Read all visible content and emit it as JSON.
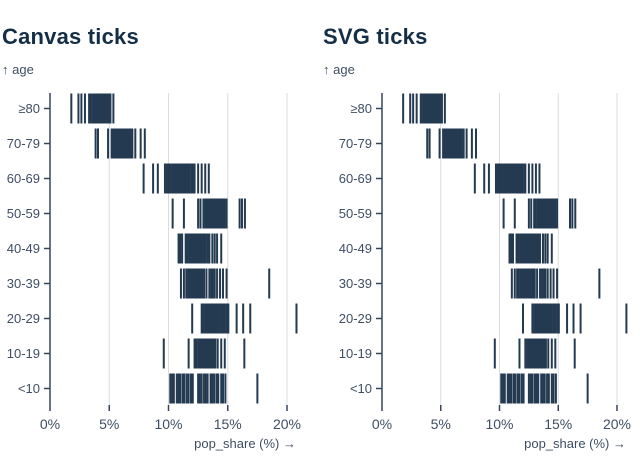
{
  "colors": {
    "tick": "#243a50",
    "axis": "#33465c",
    "grid": "#d8dce2",
    "label": "#3e4e63",
    "title": "#152e47",
    "background": "#ffffff"
  },
  "chart_data": [
    {
      "type": "scatter",
      "mark": "tick",
      "title": "Canvas ticks",
      "ylabel": "↑ age",
      "xlabel": "pop_share (%) →",
      "xlim": [
        0,
        20
      ],
      "grid": true,
      "xticks": {
        "labels": [
          "0%",
          "5%",
          "10%",
          "15%",
          "20%"
        ],
        "values": [
          0,
          5,
          10,
          15,
          20
        ]
      },
      "categories": [
        "≥80",
        "70-79",
        "60-69",
        "50-59",
        "40-49",
        "30-39",
        "20-29",
        "10-19",
        "<10"
      ],
      "series": [
        {
          "name": "≥80",
          "values": [
            1.8,
            2.4,
            2.65,
            2.95,
            3.3,
            3.45,
            3.6,
            3.7,
            3.8,
            3.85,
            3.95,
            4.0,
            4.05,
            4.15,
            4.2,
            4.25,
            4.35,
            4.4,
            4.5,
            4.55,
            4.65,
            4.7,
            4.8,
            4.9,
            5.0,
            5.1,
            5.35
          ]
        },
        {
          "name": "70-79",
          "values": [
            3.85,
            4.05,
            4.9,
            5.2,
            5.35,
            5.45,
            5.55,
            5.6,
            5.7,
            5.75,
            5.85,
            5.9,
            6.0,
            6.05,
            6.15,
            6.2,
            6.3,
            6.4,
            6.5,
            6.6,
            6.7,
            6.8,
            6.95,
            7.2,
            7.65,
            8.0
          ]
        },
        {
          "name": "60-69",
          "values": [
            7.9,
            8.7,
            9.1,
            9.7,
            9.85,
            10.0,
            10.15,
            10.3,
            10.4,
            10.5,
            10.6,
            10.7,
            10.8,
            10.9,
            11.0,
            11.1,
            11.2,
            11.3,
            11.4,
            11.5,
            11.6,
            11.7,
            11.8,
            11.95,
            12.1,
            12.2,
            12.5,
            12.8,
            13.1,
            13.4
          ]
        },
        {
          "name": "50-59",
          "values": [
            10.35,
            11.3,
            12.5,
            12.7,
            12.95,
            13.1,
            13.25,
            13.35,
            13.45,
            13.55,
            13.65,
            13.75,
            13.85,
            13.95,
            14.05,
            14.15,
            14.25,
            14.35,
            14.45,
            14.55,
            14.65,
            14.75,
            14.9,
            16.0,
            16.2,
            16.45
          ]
        },
        {
          "name": "40-49",
          "values": [
            10.85,
            11.0,
            11.15,
            11.45,
            11.6,
            11.75,
            11.85,
            11.95,
            12.05,
            12.15,
            12.25,
            12.35,
            12.45,
            12.55,
            12.65,
            12.75,
            12.85,
            12.95,
            13.05,
            13.15,
            13.3,
            13.45,
            13.7,
            13.9,
            14.1,
            14.45
          ]
        },
        {
          "name": "30-39",
          "values": [
            11.05,
            11.3,
            11.5,
            11.65,
            11.8,
            11.9,
            12.0,
            12.1,
            12.2,
            12.3,
            12.4,
            12.5,
            12.6,
            12.7,
            12.85,
            13.0,
            13.2,
            13.45,
            13.6,
            13.75,
            13.9,
            14.1,
            14.35,
            14.6,
            14.9,
            18.5
          ]
        },
        {
          "name": "20-29",
          "values": [
            12.0,
            12.8,
            12.95,
            13.1,
            13.2,
            13.3,
            13.4,
            13.5,
            13.6,
            13.7,
            13.8,
            13.9,
            14.0,
            14.1,
            14.2,
            14.3,
            14.45,
            14.6,
            14.75,
            14.9,
            15.05,
            15.75,
            16.3,
            16.9,
            20.8
          ]
        },
        {
          "name": "10-19",
          "values": [
            9.6,
            11.7,
            12.2,
            12.35,
            12.5,
            12.6,
            12.7,
            12.8,
            12.9,
            13.0,
            13.1,
            13.2,
            13.3,
            13.4,
            13.5,
            13.6,
            13.7,
            13.8,
            13.95,
            14.15,
            14.45,
            14.75,
            16.4
          ]
        },
        {
          "name": "<10",
          "values": [
            10.15,
            10.3,
            10.45,
            10.7,
            10.85,
            11.0,
            11.2,
            11.35,
            11.55,
            11.7,
            11.9,
            12.05,
            12.5,
            12.65,
            12.8,
            13.0,
            13.15,
            13.3,
            13.55,
            13.7,
            13.85,
            14.05,
            14.2,
            14.45,
            14.6,
            14.8,
            17.5
          ]
        }
      ]
    },
    {
      "type": "scatter",
      "mark": "tick",
      "title": "SVG ticks",
      "ylabel": "↑ age",
      "xlabel": "pop_share (%) →",
      "xlim": [
        0,
        20
      ],
      "grid": true,
      "xticks": {
        "labels": [
          "0%",
          "5%",
          "10%",
          "15%",
          "20%"
        ],
        "values": [
          0,
          5,
          10,
          15,
          20
        ]
      },
      "categories": [
        "≥80",
        "70-79",
        "60-69",
        "50-59",
        "40-49",
        "30-39",
        "20-29",
        "10-19",
        "<10"
      ],
      "series": [
        {
          "name": "≥80",
          "values": [
            1.8,
            2.4,
            2.65,
            2.95,
            3.3,
            3.45,
            3.6,
            3.7,
            3.8,
            3.85,
            3.95,
            4.0,
            4.05,
            4.15,
            4.2,
            4.25,
            4.35,
            4.4,
            4.5,
            4.55,
            4.65,
            4.7,
            4.8,
            4.9,
            5.0,
            5.1,
            5.35
          ]
        },
        {
          "name": "70-79",
          "values": [
            3.85,
            4.05,
            4.9,
            5.2,
            5.35,
            5.45,
            5.55,
            5.6,
            5.7,
            5.75,
            5.85,
            5.9,
            6.0,
            6.05,
            6.15,
            6.2,
            6.3,
            6.4,
            6.5,
            6.6,
            6.7,
            6.8,
            6.95,
            7.2,
            7.65,
            8.0
          ]
        },
        {
          "name": "60-69",
          "values": [
            7.9,
            8.7,
            9.1,
            9.7,
            9.85,
            10.0,
            10.15,
            10.3,
            10.4,
            10.5,
            10.6,
            10.7,
            10.8,
            10.9,
            11.0,
            11.1,
            11.2,
            11.3,
            11.4,
            11.5,
            11.6,
            11.7,
            11.8,
            11.95,
            12.1,
            12.2,
            12.5,
            12.8,
            13.1,
            13.4
          ]
        },
        {
          "name": "50-59",
          "values": [
            10.35,
            11.3,
            12.5,
            12.7,
            12.95,
            13.1,
            13.25,
            13.35,
            13.45,
            13.55,
            13.65,
            13.75,
            13.85,
            13.95,
            14.05,
            14.15,
            14.25,
            14.35,
            14.45,
            14.55,
            14.65,
            14.75,
            14.9,
            16.0,
            16.2,
            16.45
          ]
        },
        {
          "name": "40-49",
          "values": [
            10.85,
            11.0,
            11.15,
            11.45,
            11.6,
            11.75,
            11.85,
            11.95,
            12.05,
            12.15,
            12.25,
            12.35,
            12.45,
            12.55,
            12.65,
            12.75,
            12.85,
            12.95,
            13.05,
            13.15,
            13.3,
            13.45,
            13.7,
            13.9,
            14.1,
            14.45
          ]
        },
        {
          "name": "30-39",
          "values": [
            11.05,
            11.3,
            11.5,
            11.65,
            11.8,
            11.9,
            12.0,
            12.1,
            12.2,
            12.3,
            12.4,
            12.5,
            12.6,
            12.7,
            12.85,
            13.0,
            13.2,
            13.45,
            13.6,
            13.75,
            13.9,
            14.1,
            14.35,
            14.6,
            14.9,
            18.5
          ]
        },
        {
          "name": "20-29",
          "values": [
            12.0,
            12.8,
            12.95,
            13.1,
            13.2,
            13.3,
            13.4,
            13.5,
            13.6,
            13.7,
            13.8,
            13.9,
            14.0,
            14.1,
            14.2,
            14.3,
            14.45,
            14.6,
            14.75,
            14.9,
            15.05,
            15.75,
            16.3,
            16.9,
            20.8
          ]
        },
        {
          "name": "10-19",
          "values": [
            9.6,
            11.7,
            12.2,
            12.35,
            12.5,
            12.6,
            12.7,
            12.8,
            12.9,
            13.0,
            13.1,
            13.2,
            13.3,
            13.4,
            13.5,
            13.6,
            13.7,
            13.8,
            13.95,
            14.15,
            14.45,
            14.75,
            16.4
          ]
        },
        {
          "name": "<10",
          "values": [
            10.15,
            10.3,
            10.45,
            10.7,
            10.85,
            11.0,
            11.2,
            11.35,
            11.55,
            11.7,
            11.9,
            12.05,
            12.5,
            12.65,
            12.8,
            13.0,
            13.15,
            13.3,
            13.55,
            13.7,
            13.85,
            14.05,
            14.2,
            14.45,
            14.6,
            14.8,
            17.5
          ]
        }
      ]
    }
  ]
}
